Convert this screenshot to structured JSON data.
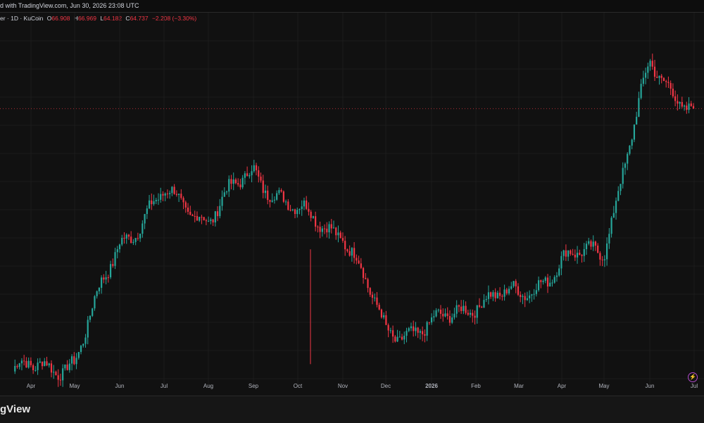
{
  "header": {
    "caption": "d with TradingView.com, Jun 30, 2026 23:08 UTC"
  },
  "legend": {
    "symbol": "er · 1D · KuCoin",
    "open_label": "O",
    "open": "66.908",
    "high_label": "H",
    "high": "66.969",
    "low_label": "L",
    "low": "64.182",
    "close_label": "C",
    "close": "64.737",
    "change": "−2.208 (−3.30%)"
  },
  "footer": {
    "brand": "gView"
  },
  "icons": {
    "bolt": "lightning-bolt-icon"
  },
  "colors": {
    "up": "#26a69a",
    "down": "#f23645",
    "background": "#111111",
    "grid": "#1c1c1c",
    "last_price_line": "#f23645"
  },
  "chart_data": {
    "type": "candlestick",
    "interval": "1D",
    "exchange": "KuCoin",
    "x_tick_labels": [
      "Apr",
      "May",
      "Jun",
      "Jul",
      "Aug",
      "Sep",
      "Oct",
      "Nov",
      "Dec",
      "2026",
      "Feb",
      "Mar",
      "Apr",
      "May",
      "Jun",
      "Jul"
    ],
    "grid": true,
    "y_axis": "hidden (cropped)",
    "last_price_line": "dotted, at last close",
    "price_path_relative_to_chart_height": [
      {
        "label": "Apr",
        "close_level": 0.04
      },
      {
        "label": "May",
        "close_level": 0.07
      },
      {
        "label": "Jun",
        "close_level": 0.4
      },
      {
        "label": "Jul",
        "close_level": 0.53
      },
      {
        "label": "Aug",
        "close_level": 0.47
      },
      {
        "label": "Sep",
        "close_level": 0.6
      },
      {
        "label": "Oct",
        "close_level": 0.48
      },
      {
        "label": "Nov",
        "close_level": 0.43
      },
      {
        "label": "Dec",
        "close_level": 0.15
      },
      {
        "label": "2026",
        "close_level": 0.16
      },
      {
        "label": "Feb",
        "close_level": 0.24
      },
      {
        "label": "Mar",
        "close_level": 0.25
      },
      {
        "label": "Apr",
        "close_level": 0.34
      },
      {
        "label": "May",
        "close_level": 0.39
      },
      {
        "label": "Jun",
        "close_level": 0.89
      },
      {
        "label": "Jul",
        "close_level": 0.77
      }
    ],
    "note_values": "Price scale is cropped out of the image; levels are relative positions (0 = chart bottom, 1 = chart top)."
  }
}
